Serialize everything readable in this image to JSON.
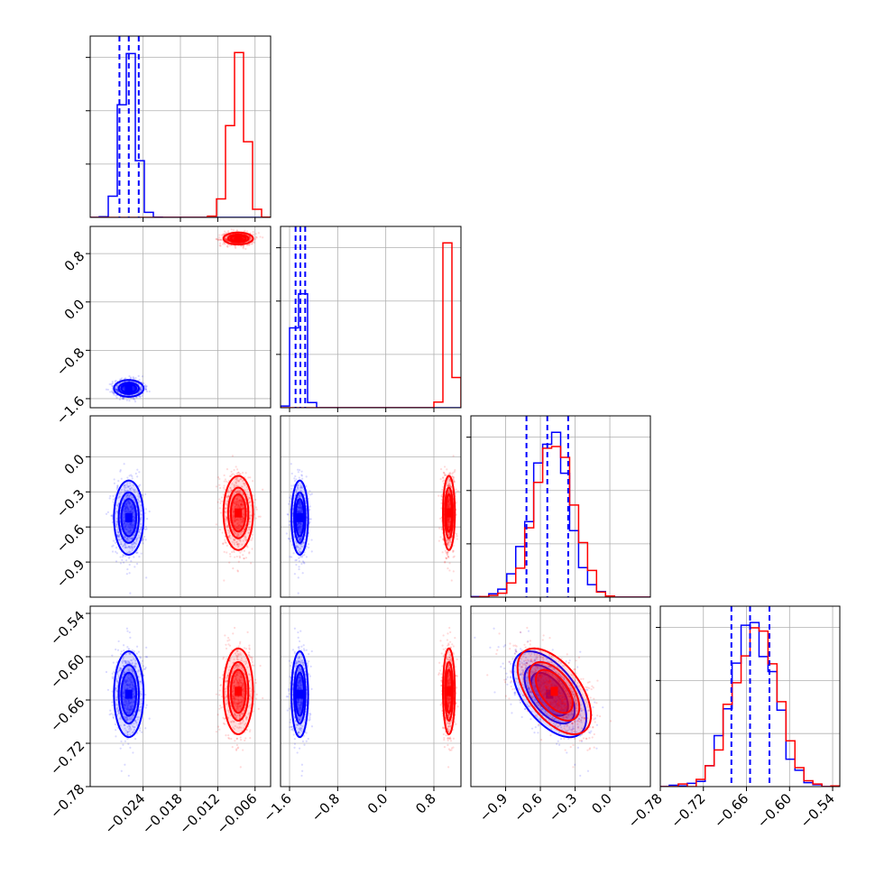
{
  "chart_data": {
    "type": "scatter",
    "subtype": "corner-plot",
    "grid": true,
    "colors": {
      "series_a": "#0000ff",
      "series_b": "#ff0000",
      "quantile_lines": "#0000ff",
      "grid": "#b0b0b0"
    },
    "parameters": [
      {
        "range": [
          -0.0325,
          -0.0035
        ],
        "ticks": [
          -0.024,
          -0.018,
          -0.012,
          -0.006
        ],
        "tick_labels": [
          "−0.024",
          "−0.018",
          "−0.012",
          "−0.006"
        ],
        "quantiles": [
          -0.0278,
          -0.0263,
          -0.0247
        ]
      },
      {
        "range": [
          -1.75,
          1.25
        ],
        "ticks": [
          -1.6,
          -0.8,
          0.0,
          0.8
        ],
        "tick_labels": [
          "−1.6",
          "−0.8",
          "0.0",
          "0.8"
        ],
        "quantiles": [
          -1.5,
          -1.42,
          -1.34
        ]
      },
      {
        "range": [
          -1.2,
          0.35
        ],
        "ticks": [
          -0.9,
          -0.6,
          -0.3,
          0.0
        ],
        "tick_labels": [
          "−0.9",
          "−0.6",
          "−0.3",
          "0.0"
        ],
        "quantiles": [
          -0.72,
          -0.54,
          -0.36
        ]
      },
      {
        "range": [
          -0.78,
          -0.53
        ],
        "ticks": [
          -0.78,
          -0.72,
          -0.66,
          -0.6,
          -0.54
        ],
        "tick_labels": [
          "−0.78",
          "−0.72",
          "−0.66",
          "−0.60",
          "−0.54"
        ],
        "quantiles": [
          -0.681,
          -0.655,
          -0.628
        ]
      }
    ],
    "series": [
      {
        "color": "#0000ff",
        "means": [
          -0.0263,
          -1.43,
          -0.52,
          -0.652
        ],
        "sds": [
          0.0012,
          0.07,
          0.16,
          0.03
        ],
        "corr": [
          [
            1.0,
            0.0,
            0.0,
            0.0
          ],
          [
            0.0,
            1.0,
            0.0,
            0.0
          ],
          [
            0.0,
            0.0,
            1.0,
            -0.55
          ],
          [
            0.0,
            0.0,
            -0.55,
            1.0
          ]
        ]
      },
      {
        "color": "#ff0000",
        "means": [
          -0.0087,
          1.05,
          -0.48,
          -0.648
        ],
        "sds": [
          0.0012,
          0.05,
          0.16,
          0.03
        ],
        "corr": [
          [
            1.0,
            0.0,
            0.0,
            0.0
          ],
          [
            0.0,
            1.0,
            0.0,
            0.0
          ],
          [
            0.0,
            0.0,
            1.0,
            -0.55
          ],
          [
            0.0,
            0.0,
            -0.55,
            1.0
          ]
        ]
      }
    ]
  }
}
